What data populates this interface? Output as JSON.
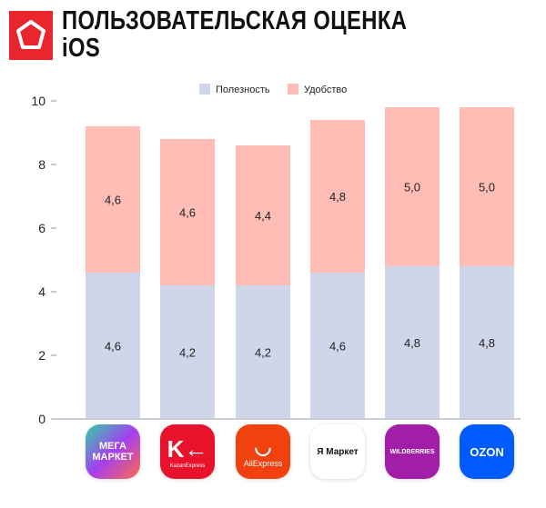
{
  "header": {
    "title_line1": "ПОЛЬЗОВАТЕЛЬСКАЯ ОЦЕНКА",
    "title_line2": "iOS",
    "logo": "pentagon-logo"
  },
  "chart_data": {
    "type": "bar",
    "stacked": true,
    "categories": [
      "МегаМаркет",
      "KazanExpress",
      "AliExpress",
      "Яндекс Маркет",
      "Wildberries",
      "Ozon"
    ],
    "series": [
      {
        "name": "Полезность",
        "color": "#cfd6ea",
        "values": [
          4.6,
          4.2,
          4.2,
          4.6,
          4.8,
          4.8
        ],
        "labels": [
          "4,6",
          "4,2",
          "4,2",
          "4,6",
          "4,8",
          "4,8"
        ]
      },
      {
        "name": "Удобство",
        "color": "#ffbdb6",
        "values": [
          4.6,
          4.6,
          4.4,
          4.8,
          5.0,
          5.0
        ],
        "labels": [
          "4,6",
          "4,6",
          "4,4",
          "4,8",
          "5,0",
          "5,0"
        ]
      }
    ],
    "yticks": [
      "0",
      "2",
      "4",
      "6",
      "8",
      "10"
    ],
    "ylim": [
      0,
      10
    ],
    "grid": false,
    "legend": "top-center"
  },
  "stores": [
    {
      "l1": "МЕГА",
      "l2": "МАРКЕТ",
      "bg": "linear-gradient(135deg,#2fd3a8,#a43ff0 50%,#ff6b4a)"
    },
    {
      "l1": "K←",
      "l2": "KazanExpress",
      "bg": "#e8122c"
    },
    {
      "l1": "◡",
      "l2": "AliExpress",
      "bg": "#f0410f"
    },
    {
      "l1": "Я Маркет",
      "l2": "",
      "bg": "#ffffff"
    },
    {
      "l1": "WILDBERRIES",
      "l2": "",
      "bg": "#a21ea8"
    },
    {
      "l1": "OZON",
      "l2": "",
      "bg": "#005bff"
    }
  ]
}
